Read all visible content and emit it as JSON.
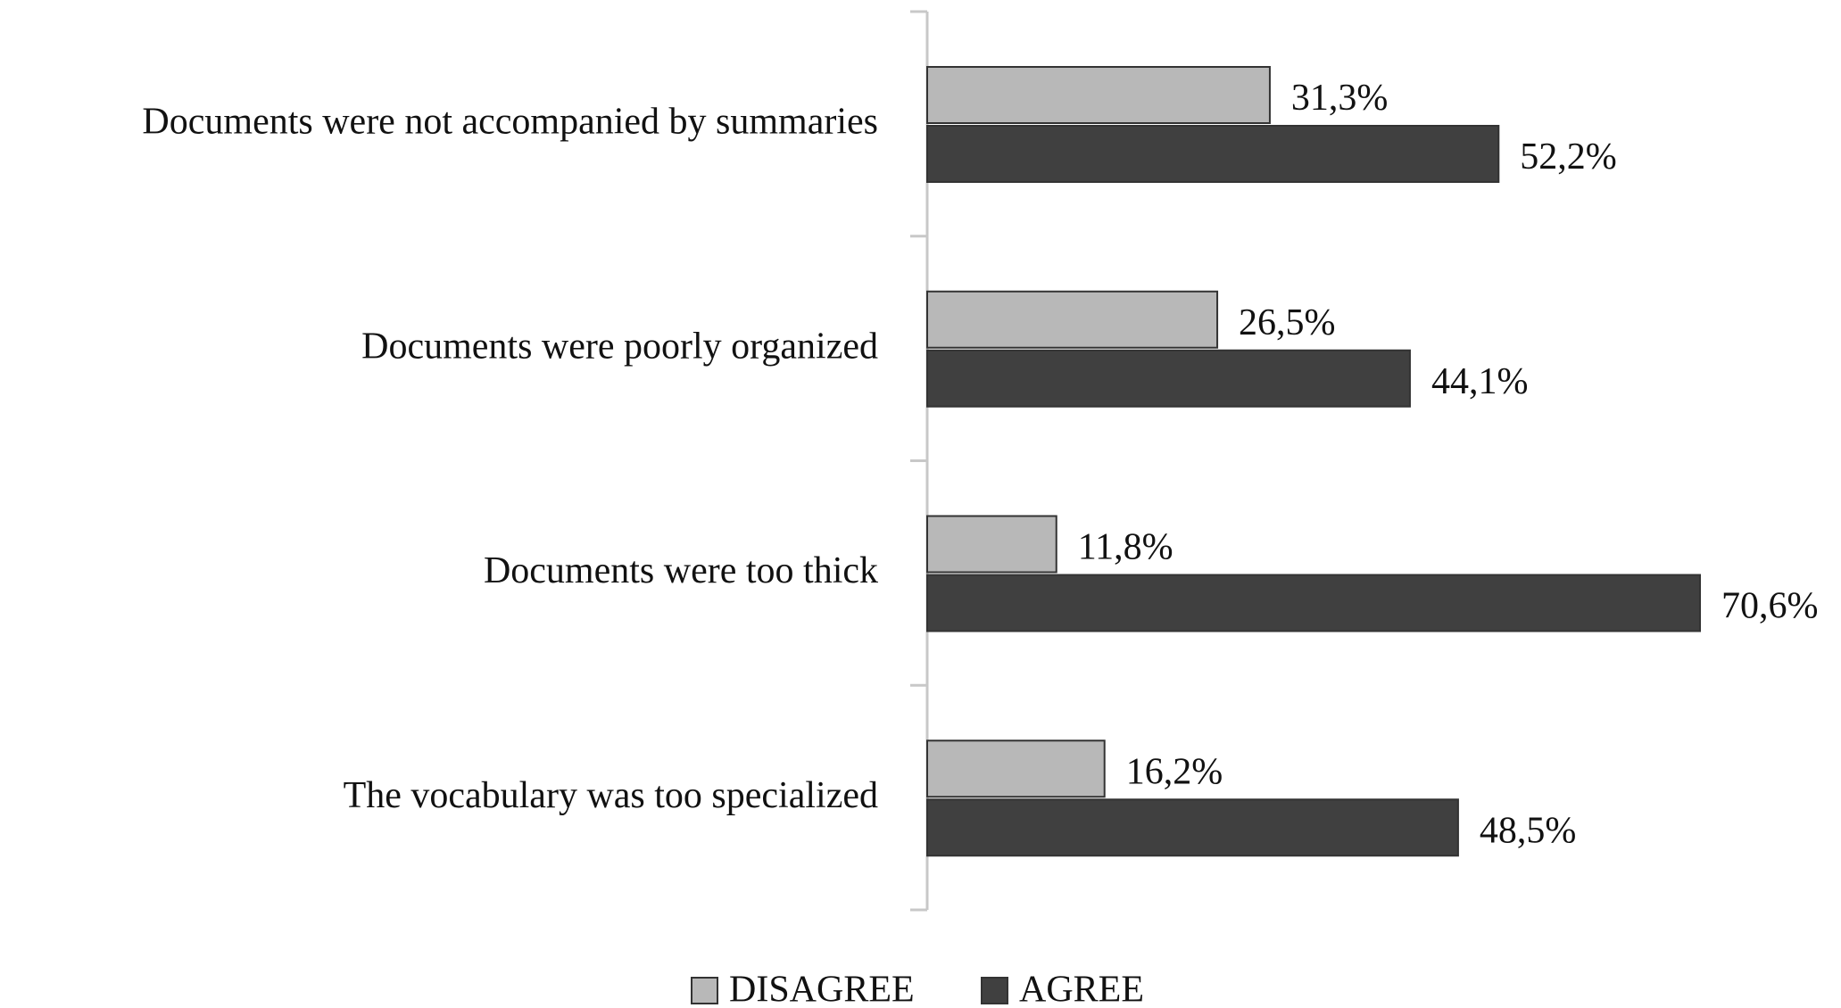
{
  "chart_data": {
    "type": "hbar",
    "categories": [
      "Documents were not accompanied by summaries",
      "Documents were poorly organized",
      "Documents were too thick",
      "The vocabulary was too specialized"
    ],
    "series": [
      {
        "name": "DISAGREE",
        "color": "#b8b8b8",
        "values": [
          31.3,
          26.5,
          11.8,
          16.2
        ],
        "value_labels": [
          "31,3%",
          "26,5%",
          "11,8%",
          "16,2%"
        ]
      },
      {
        "name": "AGREE",
        "color": "#404040",
        "values": [
          52.2,
          44.1,
          70.6,
          48.5
        ],
        "value_labels": [
          "52,2%",
          "44,1%",
          "70,6%",
          "48,5%"
        ]
      }
    ],
    "legend": "bottom"
  }
}
